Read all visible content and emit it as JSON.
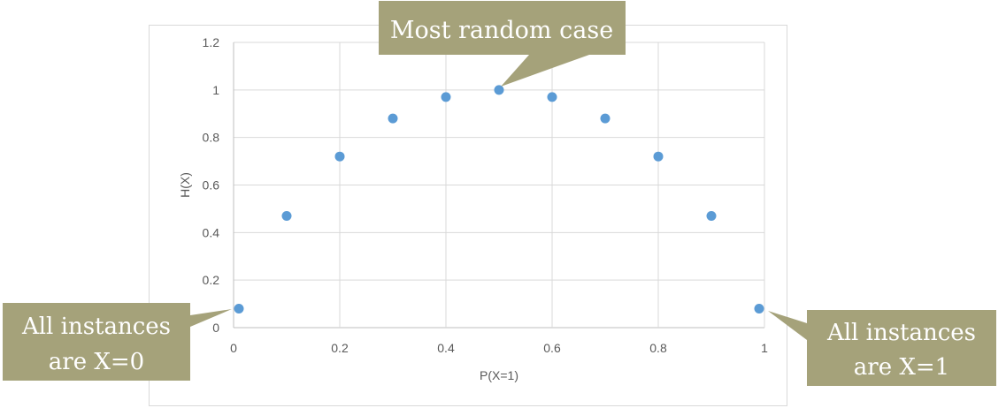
{
  "chart_data": {
    "type": "scatter",
    "title": "",
    "xlabel": "P(X=1)",
    "ylabel": "H(X)",
    "xlim": [
      0,
      1
    ],
    "ylim": [
      0,
      1.2
    ],
    "xticks": [
      "0",
      "0.2",
      "0.4",
      "0.6",
      "0.8",
      "1"
    ],
    "yticks": [
      "0",
      "0.2",
      "0.4",
      "0.6",
      "0.8",
      "1",
      "1.2"
    ],
    "grid": true,
    "marker_color": "#5b9bd5",
    "series": [
      {
        "name": "H(X)",
        "x": [
          0.01,
          0.1,
          0.2,
          0.3,
          0.4,
          0.5,
          0.6,
          0.7,
          0.8,
          0.9,
          0.99
        ],
        "y": [
          0.08,
          0.47,
          0.72,
          0.88,
          0.97,
          1.0,
          0.97,
          0.88,
          0.72,
          0.47,
          0.08
        ]
      }
    ]
  },
  "annotations": {
    "color": "#a5a27a",
    "top": "Most random case",
    "left_line1": "All instances",
    "left_line2": "are X=0",
    "right_line1": "All instances",
    "right_line2": "are X=1"
  }
}
